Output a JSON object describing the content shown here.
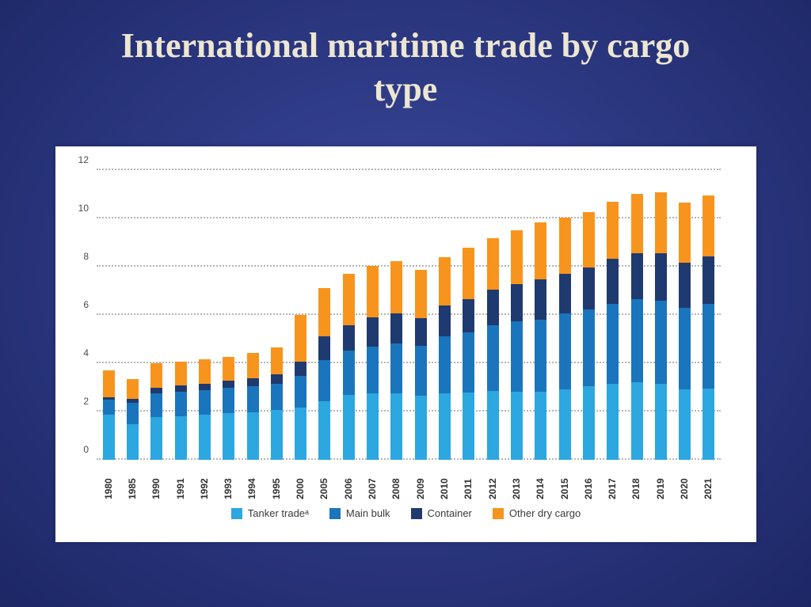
{
  "slide": {
    "title": "International maritime trade by cargo type"
  },
  "chart_data": {
    "type": "bar",
    "stacked": true,
    "title": "International maritime trade by cargo type",
    "xlabel": "",
    "ylabel": "",
    "ylim": [
      0,
      12
    ],
    "yticks": [
      0,
      2,
      4,
      6,
      8,
      10,
      12
    ],
    "grid": "horizontal-dotted",
    "legend_position": "bottom",
    "categories": [
      "1980",
      "1985",
      "1990",
      "1991",
      "1992",
      "1993",
      "1994",
      "1995",
      "2000",
      "2005",
      "2006",
      "2007",
      "2008",
      "2009",
      "2010",
      "2011",
      "2012",
      "2013",
      "2014",
      "2015",
      "2016",
      "2017",
      "2018",
      "2019",
      "2020",
      "2021"
    ],
    "series": [
      {
        "name": "Tanker tradeᵃ",
        "color": "#2da7df",
        "values": [
          1.87,
          1.46,
          1.76,
          1.79,
          1.86,
          1.92,
          1.97,
          2.05,
          2.16,
          2.42,
          2.7,
          2.75,
          2.74,
          2.64,
          2.77,
          2.79,
          2.84,
          2.83,
          2.83,
          2.93,
          3.06,
          3.15,
          3.2,
          3.16,
          2.92,
          2.95
        ]
      },
      {
        "name": "Main bulk",
        "color": "#1b75bc",
        "values": [
          0.61,
          0.9,
          0.99,
          1.03,
          1.03,
          1.05,
          1.08,
          1.11,
          1.3,
          1.71,
          1.81,
          1.95,
          2.07,
          2.09,
          2.33,
          2.49,
          2.74,
          2.92,
          2.99,
          3.12,
          3.17,
          3.32,
          3.46,
          3.44,
          3.38,
          3.52
        ]
      },
      {
        "name": "Container",
        "color": "#1f3a6e",
        "values": [
          0.1,
          0.15,
          0.23,
          0.25,
          0.27,
          0.3,
          0.33,
          0.37,
          0.6,
          0.97,
          1.08,
          1.19,
          1.25,
          1.13,
          1.28,
          1.39,
          1.46,
          1.54,
          1.64,
          1.66,
          1.74,
          1.85,
          1.89,
          1.95,
          1.85,
          1.95
        ]
      },
      {
        "name": "Other dry cargo",
        "color": "#f7941e",
        "values": [
          1.12,
          0.82,
          1.03,
          1.01,
          1.0,
          1.0,
          1.06,
          1.13,
          1.93,
          2.01,
          2.11,
          2.14,
          2.17,
          2.0,
          2.02,
          2.11,
          2.15,
          2.22,
          2.39,
          2.31,
          2.3,
          2.38,
          2.46,
          2.53,
          2.5,
          2.54
        ]
      }
    ]
  }
}
